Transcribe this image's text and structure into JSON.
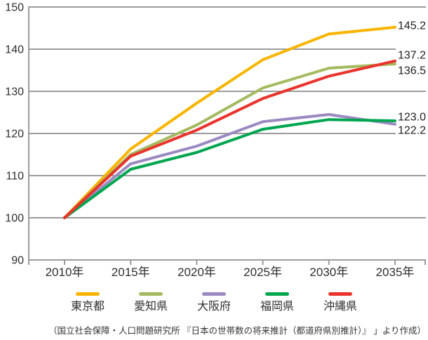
{
  "chart_data": {
    "type": "line",
    "title": "",
    "xlabel": "",
    "ylabel": "",
    "x_labels": [
      "2010年",
      "2015年",
      "2020年",
      "2025年",
      "2030年",
      "2035年"
    ],
    "y_ticks": [
      90,
      100,
      110,
      120,
      130,
      140,
      150
    ],
    "ylim": [
      90,
      150
    ],
    "grid": true,
    "legend_position": "bottom",
    "grid_color": "#9b9b9b",
    "axis_text_color": "#2e2e2e",
    "series": [
      {
        "id": "tokyo",
        "name": "東京都",
        "color": "#f7b400",
        "values": [
          100,
          116.3,
          127.2,
          137.5,
          143.6,
          145.2
        ],
        "end_label": "145.2"
      },
      {
        "id": "aichi",
        "name": "愛知県",
        "color": "#a4ba5f",
        "values": [
          100,
          115.0,
          122.0,
          130.8,
          135.5,
          136.5
        ],
        "end_label": "136.5"
      },
      {
        "id": "osaka",
        "name": "大阪府",
        "color": "#9b89c1",
        "values": [
          100,
          112.8,
          117.0,
          122.8,
          124.5,
          122.2
        ],
        "end_label": "122.2"
      },
      {
        "id": "fukuoka",
        "name": "福岡県",
        "color": "#00a64f",
        "values": [
          100,
          111.5,
          115.5,
          121.0,
          123.3,
          123.0
        ],
        "end_label": "123.0"
      },
      {
        "id": "okinawa",
        "name": "沖縄県",
        "color": "#e9332b",
        "values": [
          100,
          114.6,
          120.8,
          128.3,
          133.6,
          137.2
        ],
        "end_label": "137.2"
      }
    ],
    "source_note": "（国立社会保障・人口問題研究所 『日本の世帯数の将来推計（都道府県別推計）』 」より作成）"
  }
}
